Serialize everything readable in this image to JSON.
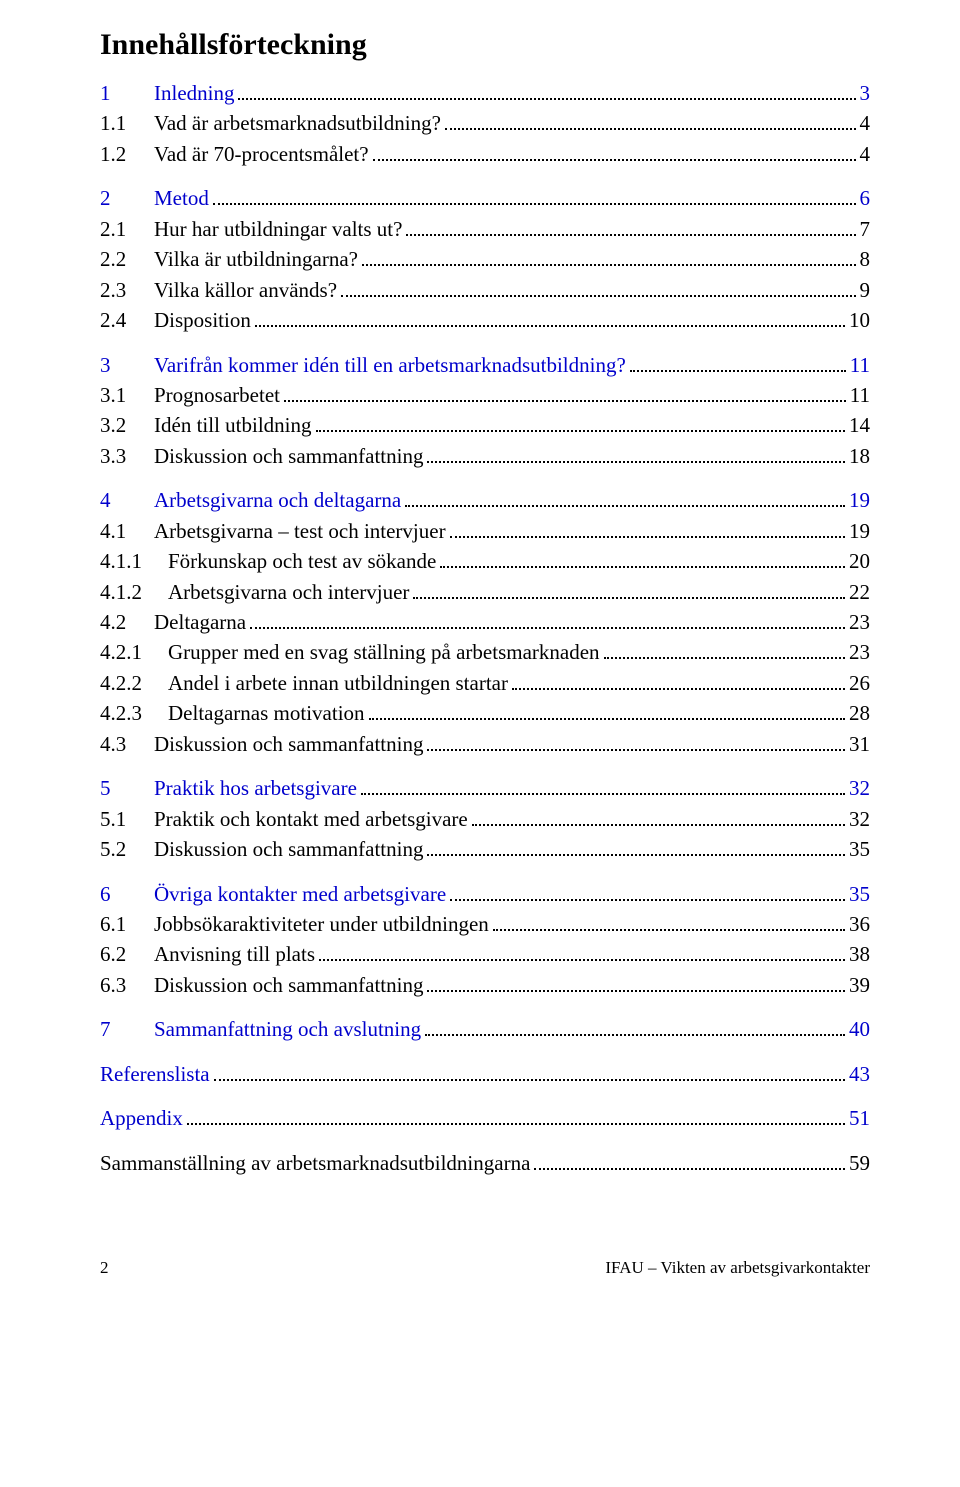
{
  "title": "Innehållsförteckning",
  "link_color": "#0000cc",
  "text_color": "#000000",
  "sections": [
    {
      "num": "1",
      "label": "Inledning",
      "page": "3",
      "link": true,
      "level": 0,
      "gap": true
    },
    {
      "num": "1.1",
      "label": "Vad är arbetsmarknadsutbildning?",
      "page": "4",
      "link": false,
      "level": 1
    },
    {
      "num": "1.2",
      "label": "Vad är 70-procentsmålet?",
      "page": "4",
      "link": false,
      "level": 1
    },
    {
      "num": "2",
      "label": "Metod",
      "page": "6",
      "link": true,
      "level": 0,
      "gap": true
    },
    {
      "num": "2.1",
      "label": "Hur har utbildningar valts ut?",
      "page": "7",
      "link": false,
      "level": 1
    },
    {
      "num": "2.2",
      "label": "Vilka är utbildningarna?",
      "page": "8",
      "link": false,
      "level": 1
    },
    {
      "num": "2.3",
      "label": "Vilka källor används?",
      "page": "9",
      "link": false,
      "level": 1
    },
    {
      "num": "2.4",
      "label": "Disposition",
      "page": "10",
      "link": false,
      "level": 1
    },
    {
      "num": "3",
      "label": "Varifrån kommer idén till en arbetsmarknadsutbildning?",
      "page": "11",
      "link": true,
      "level": 0,
      "gap": true
    },
    {
      "num": "3.1",
      "label": "Prognosarbetet",
      "page": "11",
      "link": false,
      "level": 1
    },
    {
      "num": "3.2",
      "label": "Idén till utbildning",
      "page": "14",
      "link": false,
      "level": 1
    },
    {
      "num": "3.3",
      "label": "Diskussion och sammanfattning",
      "page": "18",
      "link": false,
      "level": 1
    },
    {
      "num": "4",
      "label": "Arbetsgivarna och deltagarna",
      "page": "19",
      "link": true,
      "level": 0,
      "gap": true
    },
    {
      "num": "4.1",
      "label": "Arbetsgivarna – test och intervjuer",
      "page": "19",
      "link": false,
      "level": 1
    },
    {
      "num": "4.1.1",
      "label": "Förkunskap och test av sökande",
      "page": "20",
      "link": false,
      "level": 2
    },
    {
      "num": "4.1.2",
      "label": "Arbetsgivarna och intervjuer",
      "page": "22",
      "link": false,
      "level": 2
    },
    {
      "num": "4.2",
      "label": "Deltagarna",
      "page": "23",
      "link": false,
      "level": 1
    },
    {
      "num": "4.2.1",
      "label": "Grupper med en svag ställning på arbetsmarknaden",
      "page": "23",
      "link": false,
      "level": 2
    },
    {
      "num": "4.2.2",
      "label": "Andel i arbete innan utbildningen startar",
      "page": "26",
      "link": false,
      "level": 2
    },
    {
      "num": "4.2.3",
      "label": "Deltagarnas motivation",
      "page": "28",
      "link": false,
      "level": 2
    },
    {
      "num": "4.3",
      "label": "Diskussion och sammanfattning",
      "page": "31",
      "link": false,
      "level": 1
    },
    {
      "num": "5",
      "label": "Praktik hos arbetsgivare",
      "page": "32",
      "link": true,
      "level": 0,
      "gap": true
    },
    {
      "num": "5.1",
      "label": "Praktik och kontakt med arbetsgivare",
      "page": "32",
      "link": false,
      "level": 1
    },
    {
      "num": "5.2",
      "label": "Diskussion och sammanfattning",
      "page": "35",
      "link": false,
      "level": 1
    },
    {
      "num": "6",
      "label": "Övriga kontakter med arbetsgivare",
      "page": "35",
      "link": true,
      "level": 0,
      "gap": true
    },
    {
      "num": "6.1",
      "label": "Jobbsökaraktiviteter under utbildningen",
      "page": "36",
      "link": false,
      "level": 1
    },
    {
      "num": "6.2",
      "label": "Anvisning till plats",
      "page": "38",
      "link": false,
      "level": 1
    },
    {
      "num": "6.3",
      "label": "Diskussion och sammanfattning",
      "page": "39",
      "link": false,
      "level": 1
    },
    {
      "num": "7",
      "label": "Sammanfattning och avslutning",
      "page": "40",
      "link": true,
      "level": 0,
      "gap": true
    },
    {
      "num": "",
      "label": "Referenslista",
      "page": "43",
      "link": true,
      "level": -1,
      "gap": true
    },
    {
      "num": "",
      "label": "Appendix",
      "page": "51",
      "link": true,
      "level": -1,
      "gap": true
    },
    {
      "num": "",
      "label": "Sammanställning av arbetsmarknadsutbildningarna",
      "page": "59",
      "link": false,
      "level": -1,
      "gap": true
    }
  ],
  "footer": {
    "page_number": "2",
    "right_text": "IFAU – Vikten av arbetsgivarkontakter"
  }
}
